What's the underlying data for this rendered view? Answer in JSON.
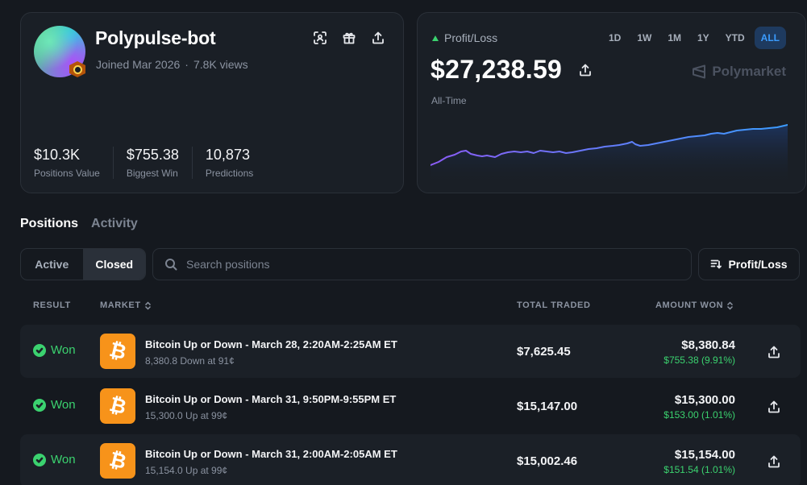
{
  "profile": {
    "username": "Polypulse-bot",
    "joined": "Joined Mar 2026",
    "views": "7.8K views",
    "stats": [
      {
        "value": "$10.3K",
        "label": "Positions Value"
      },
      {
        "value": "$755.38",
        "label": "Biggest Win"
      },
      {
        "value": "10,873",
        "label": "Predictions"
      }
    ]
  },
  "pnl": {
    "label": "Profit/Loss",
    "value": "$27,238.59",
    "period": "All-Time",
    "brand": "Polymarket",
    "ranges": [
      "1D",
      "1W",
      "1M",
      "1Y",
      "YTD",
      "ALL"
    ],
    "active_range": "ALL",
    "trend_color": "#3bd26f"
  },
  "tabs": {
    "positions": "Positions",
    "activity": "Activity",
    "active": "Positions"
  },
  "filter": {
    "active": "Active",
    "closed": "Closed",
    "selected": "Closed"
  },
  "search": {
    "placeholder": "Search positions"
  },
  "sort": {
    "label": "Profit/Loss"
  },
  "table": {
    "headers": {
      "result": "RESULT",
      "market": "MARKET",
      "total_traded": "TOTAL TRADED",
      "amount_won": "AMOUNT WON"
    },
    "rows": [
      {
        "result": "Won",
        "title": "Bitcoin Up or Down - March 28, 2:20AM-2:25AM ET",
        "subtitle": "8,380.8 Down at 91¢",
        "traded": "$7,625.45",
        "amount": "$8,380.84",
        "gain": "$755.38 (9.91%)"
      },
      {
        "result": "Won",
        "title": "Bitcoin Up or Down - March 31, 9:50PM-9:55PM ET",
        "subtitle": "15,300.0 Up at 99¢",
        "traded": "$15,147.00",
        "amount": "$15,300.00",
        "gain": "$153.00 (1.01%)"
      },
      {
        "result": "Won",
        "title": "Bitcoin Up or Down - March 31, 2:00AM-2:05AM ET",
        "subtitle": "15,154.0 Up at 99¢",
        "traded": "$15,002.46",
        "amount": "$15,154.00",
        "gain": "$151.54 (1.01%)"
      }
    ]
  },
  "colors": {
    "accent": "#3b9cff",
    "won": "#3bd26f",
    "bitcoin": "#f7931a",
    "line_start": "#8b5cf6",
    "line_end": "#3b9cff"
  },
  "icons": {
    "coin": "bitcoin-icon",
    "glyph": "₿"
  }
}
